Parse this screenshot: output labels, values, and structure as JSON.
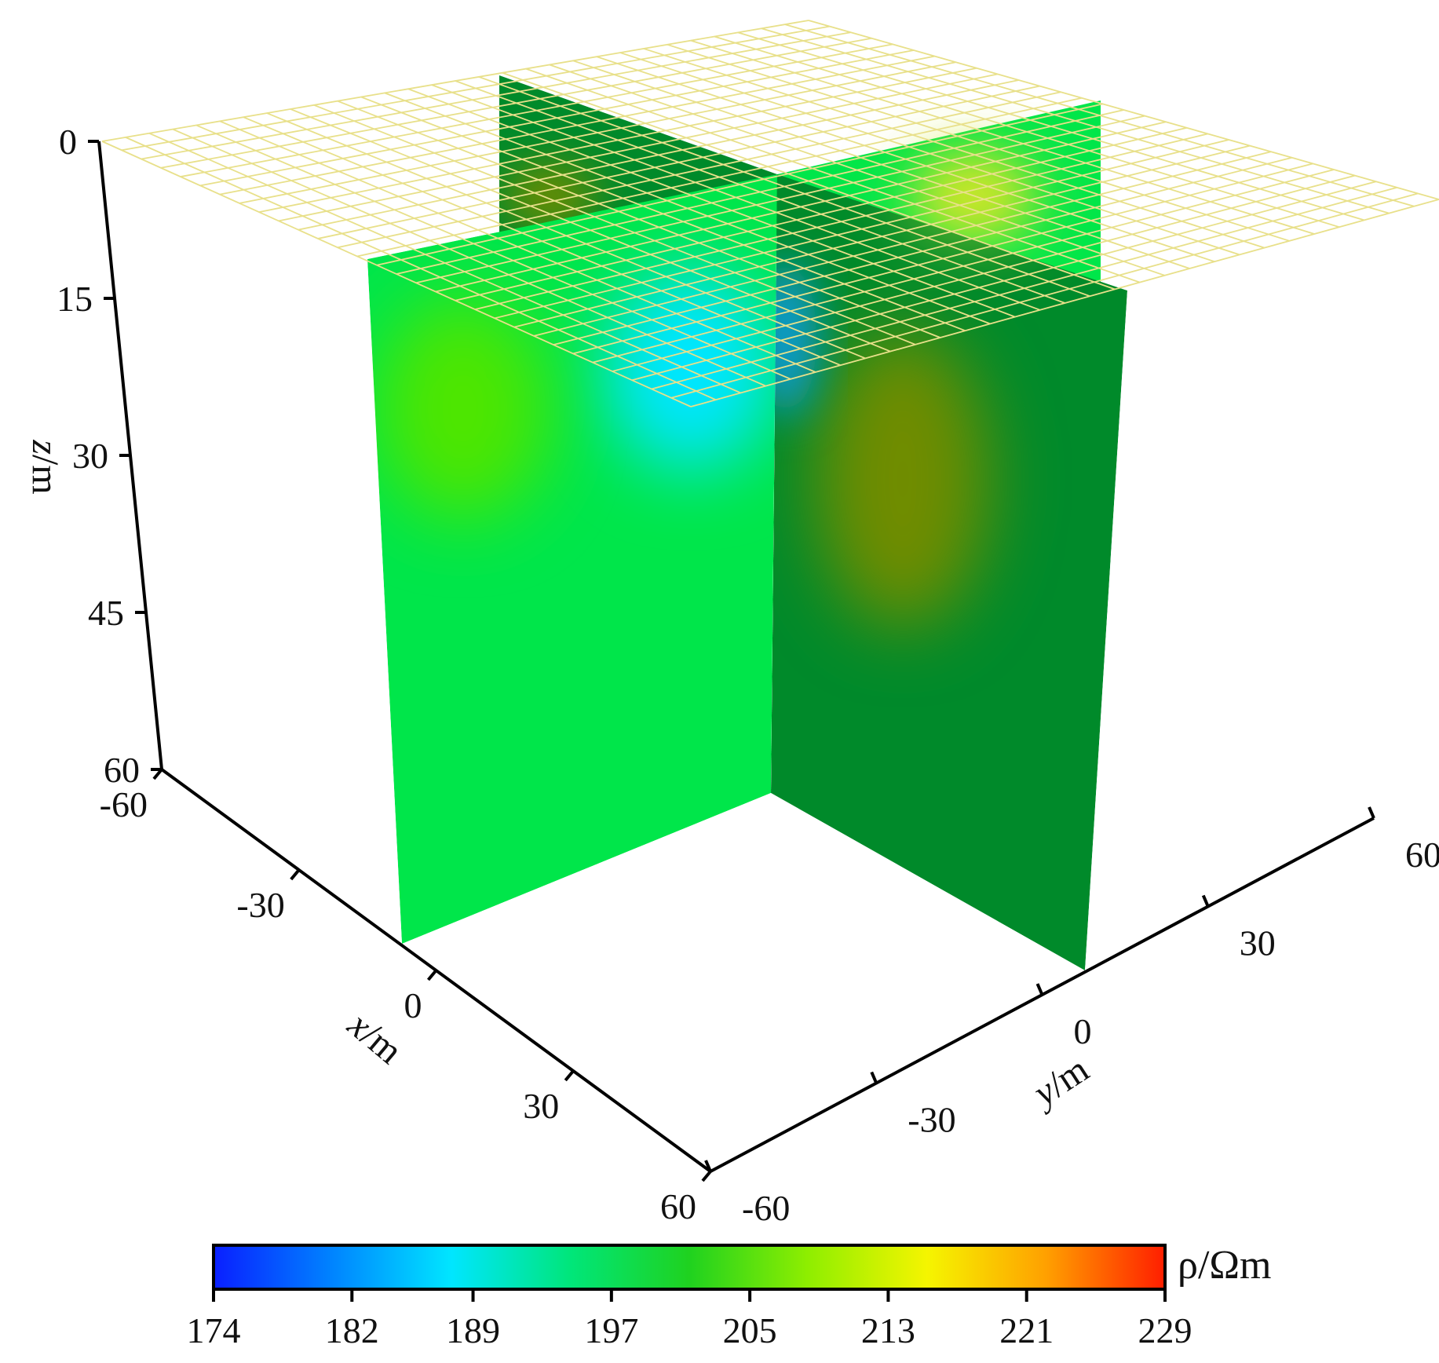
{
  "chart_data": {
    "type": "heatmap",
    "title": "",
    "x_axis": {
      "label_var": "x",
      "label_unit": "/m",
      "ticks": [
        "-60",
        "-30",
        "0",
        "30",
        "60"
      ],
      "range": [
        -60,
        60
      ]
    },
    "y_axis": {
      "label_var": "y",
      "label_unit": "/m",
      "ticks": [
        "-60",
        "-30",
        "0",
        "30",
        "60"
      ],
      "range": [
        -60,
        60
      ]
    },
    "z_axis": {
      "label_var": "z",
      "label_unit": "/m",
      "ticks": [
        "0",
        "15",
        "30",
        "45",
        "60"
      ],
      "range": [
        0,
        60
      ],
      "inverted": true
    },
    "colorbar": {
      "label": "ρ/Ωm",
      "ticks": [
        "174",
        "182",
        "189",
        "197",
        "205",
        "213",
        "221",
        "229"
      ],
      "range": [
        174,
        229
      ],
      "colormap": [
        "#0a1fff",
        "#0084ff",
        "#00e6ff",
        "#00e67a",
        "#1fd21f",
        "#8fee00",
        "#f5f500",
        "#ffa000",
        "#ff1e00"
      ]
    },
    "slices": [
      {
        "name": "x-z slice at y=0",
        "base_color": "#00e64a",
        "anomalies": [
          {
            "value": 188,
            "color": "#00e6ff",
            "at": [
              -5,
              0,
              15
            ]
          },
          {
            "value": 203,
            "color": "#4de600",
            "at": [
              -45,
              0,
              18
            ]
          }
        ]
      },
      {
        "name": "y-z slice at x=0",
        "base_color": "#008a2a",
        "anomalies": [
          {
            "value": 213,
            "color": "#6f8c00",
            "at": [
              0,
              -25,
              20
            ]
          },
          {
            "value": 192,
            "color": "#0f9bd6",
            "at": [
              0,
              55,
              10
            ]
          }
        ]
      },
      {
        "name": "horizontal grid at z=0",
        "grid": true,
        "grid_color": "#e8e08a",
        "divisions": 30,
        "anomalies": [
          {
            "value": 208,
            "color": "#c8e62a",
            "at": [
              40,
              -25,
              0
            ]
          }
        ]
      }
    ]
  }
}
